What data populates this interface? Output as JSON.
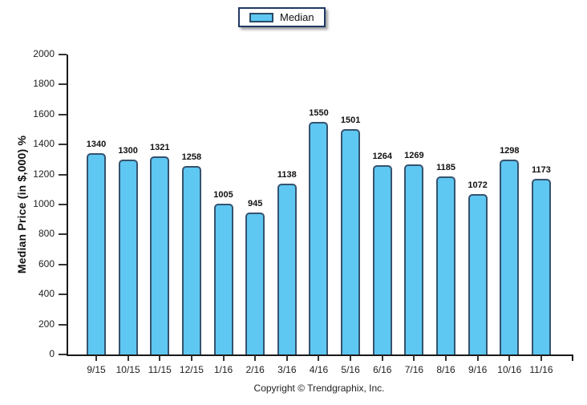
{
  "legend": {
    "label": "Median"
  },
  "footer": {
    "copyright": "Copyright © Trendgraphix, Inc."
  },
  "chart_data": {
    "type": "bar",
    "title": "",
    "categories": [
      "9/15",
      "10/15",
      "11/15",
      "12/15",
      "1/16",
      "2/16",
      "3/16",
      "4/16",
      "5/16",
      "6/16",
      "7/16",
      "8/16",
      "9/16",
      "10/16",
      "11/16"
    ],
    "series": [
      {
        "name": "Median",
        "values": [
          1340,
          1300,
          1321,
          1258,
          1005,
          945,
          1138,
          1550,
          1501,
          1264,
          1269,
          1185,
          1072,
          1298,
          1173
        ]
      }
    ],
    "ylabel": "Median Price (in $,000) %",
    "xlabel": "",
    "ylim": [
      0,
      2000
    ],
    "yticks": [
      0,
      200,
      400,
      600,
      800,
      1000,
      1200,
      1400,
      1600,
      1800,
      2000
    ],
    "grid": false,
    "legend_position": "top-center",
    "data_labels": true,
    "colors": {
      "bar_fill": "#5EC7F2",
      "bar_border": "#35536E",
      "legend_border": "#1F3864",
      "axis": "#1a1a1a",
      "text": "#111111"
    }
  }
}
